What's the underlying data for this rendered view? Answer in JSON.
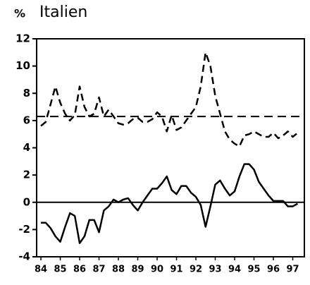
{
  "chart_data": {
    "type": "line",
    "title": "Italien",
    "ylabel": "%",
    "x": [
      84,
      84.25,
      84.5,
      84.75,
      85,
      85.25,
      85.5,
      85.75,
      86,
      86.25,
      86.5,
      86.75,
      87,
      87.25,
      87.5,
      87.75,
      88,
      88.25,
      88.5,
      88.75,
      89,
      89.25,
      89.5,
      89.75,
      90,
      90.25,
      90.5,
      90.75,
      91,
      91.25,
      91.5,
      91.75,
      92,
      92.25,
      92.5,
      92.75,
      93,
      93.25,
      93.5,
      93.75,
      94,
      94.25,
      94.5,
      94.75,
      95,
      95.25,
      95.5,
      95.75,
      96,
      96.25,
      96.5,
      96.75,
      97,
      97.25
    ],
    "series": [
      {
        "color": "#000000",
        "style": "dashed",
        "values": [
          5.6,
          5.9,
          7.2,
          8.5,
          7.3,
          6.5,
          6.0,
          6.4,
          8.5,
          7.0,
          6.3,
          6.5,
          7.7,
          6.3,
          6.8,
          6.3,
          5.8,
          5.7,
          5.8,
          6.1,
          6.2,
          5.9,
          5.9,
          6.1,
          6.6,
          6.3,
          5.2,
          6.4,
          5.3,
          5.5,
          6.0,
          6.5,
          7.0,
          8.5,
          11.0,
          10.0,
          7.8,
          6.5,
          5.2,
          4.6,
          4.3,
          4.1,
          4.9,
          5.0,
          5.2,
          5.0,
          4.8,
          4.8,
          5.1,
          4.7,
          4.9,
          5.2,
          4.8,
          5.1
        ]
      },
      {
        "color": "#000000",
        "style": "solid",
        "values": [
          -1.5,
          -1.5,
          -1.9,
          -2.5,
          -2.9,
          -1.8,
          -0.8,
          -1.0,
          -3.0,
          -2.5,
          -1.3,
          -1.3,
          -2.2,
          -0.6,
          -0.3,
          0.2,
          0.0,
          0.2,
          0.3,
          -0.2,
          -0.6,
          0.0,
          0.5,
          1.0,
          1.0,
          1.4,
          1.9,
          0.9,
          0.6,
          1.2,
          1.2,
          0.7,
          0.4,
          -0.2,
          -1.8,
          -0.3,
          1.3,
          1.6,
          1.0,
          0.5,
          0.8,
          1.9,
          2.8,
          2.8,
          2.4,
          1.5,
          1.0,
          0.5,
          0.1,
          0.1,
          0.1,
          -0.3,
          -0.3,
          -0.1
        ]
      }
    ],
    "reference_line": 6.3,
    "xlim": [
      83.78,
      97.6
    ],
    "xticks": [
      84,
      85,
      86,
      87,
      88,
      89,
      90,
      91,
      92,
      93,
      94,
      95,
      96,
      97
    ],
    "ylim": [
      -4,
      12
    ],
    "yticks": [
      -4,
      -2,
      0,
      2,
      4,
      6,
      8,
      10,
      12
    ]
  }
}
